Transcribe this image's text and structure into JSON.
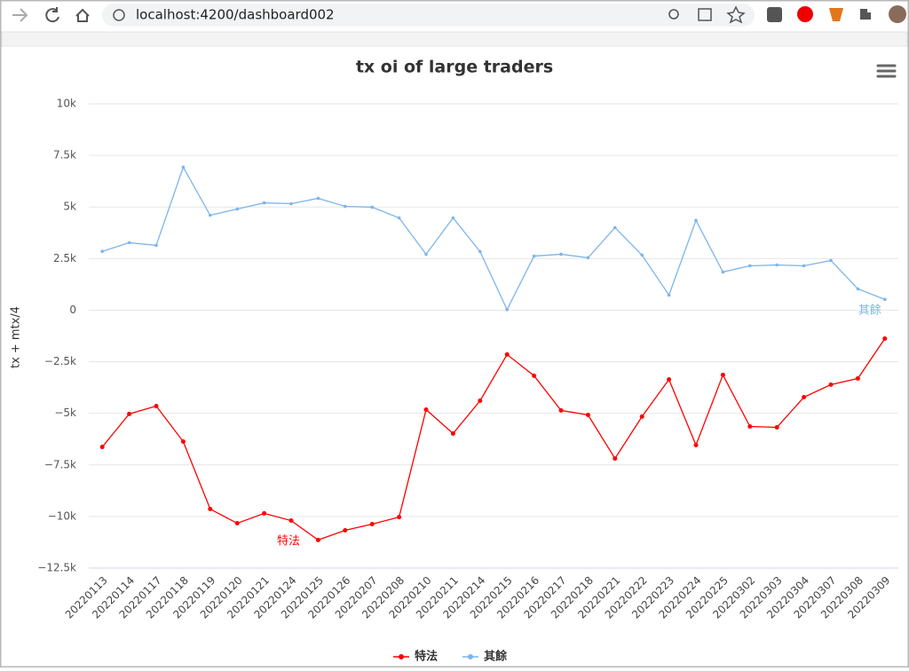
{
  "browser": {
    "url": "localhost:4200/dashboard002"
  },
  "chart_data": {
    "type": "line",
    "title": "tx oi of large traders",
    "y_label": "tx + mtx/4",
    "categories": [
      "20220113",
      "20220114",
      "20220117",
      "20220118",
      "20220119",
      "20220120",
      "20220121",
      "20220124",
      "20220125",
      "20220126",
      "20220207",
      "20220208",
      "20220210",
      "20220211",
      "20220214",
      "20220215",
      "20220216",
      "20220217",
      "20220218",
      "20220221",
      "20220222",
      "20220223",
      "20220224",
      "20220225",
      "20220302",
      "20220303",
      "20220304",
      "20220307",
      "20220308",
      "20220309"
    ],
    "series": [
      {
        "name": "特法",
        "color": "#ff0000",
        "values": [
          -6630,
          -5030,
          -4650,
          -6370,
          -9640,
          -10330,
          -9850,
          -10200,
          -11140,
          -10670,
          -10370,
          -10030,
          -4820,
          -5980,
          -4390,
          -2150,
          -3180,
          -4860,
          -5080,
          -7190,
          -5160,
          -3360,
          -6540,
          -3140,
          -5640,
          -5680,
          -4220,
          -3610,
          -3310,
          -1380
        ]
      },
      {
        "name": "其餘",
        "color": "#7cb5ec",
        "values": [
          2850,
          3270,
          3140,
          6930,
          4600,
          4900,
          5200,
          5160,
          5420,
          5030,
          4990,
          4470,
          2710,
          4470,
          2840,
          30,
          2620,
          2710,
          2540,
          4000,
          2670,
          730,
          4350,
          1850,
          2150,
          2190,
          2150,
          2410,
          1030,
          520
        ]
      }
    ],
    "ylim": [
      -12500,
      10000
    ],
    "yticks": [
      {
        "value": -12500,
        "label": "−12.5k"
      },
      {
        "value": -10000,
        "label": "−10k"
      },
      {
        "value": -7500,
        "label": "−7.5k"
      },
      {
        "value": -5000,
        "label": "−5k"
      },
      {
        "value": -2500,
        "label": "−2.5k"
      },
      0,
      {
        "value": 2500,
        "label": "2.5k"
      },
      {
        "value": 5000,
        "label": "5k"
      },
      {
        "value": 7500,
        "label": "7.5k"
      },
      {
        "value": 10000,
        "label": "10k"
      }
    ],
    "grid": true,
    "legend": "bottom"
  }
}
